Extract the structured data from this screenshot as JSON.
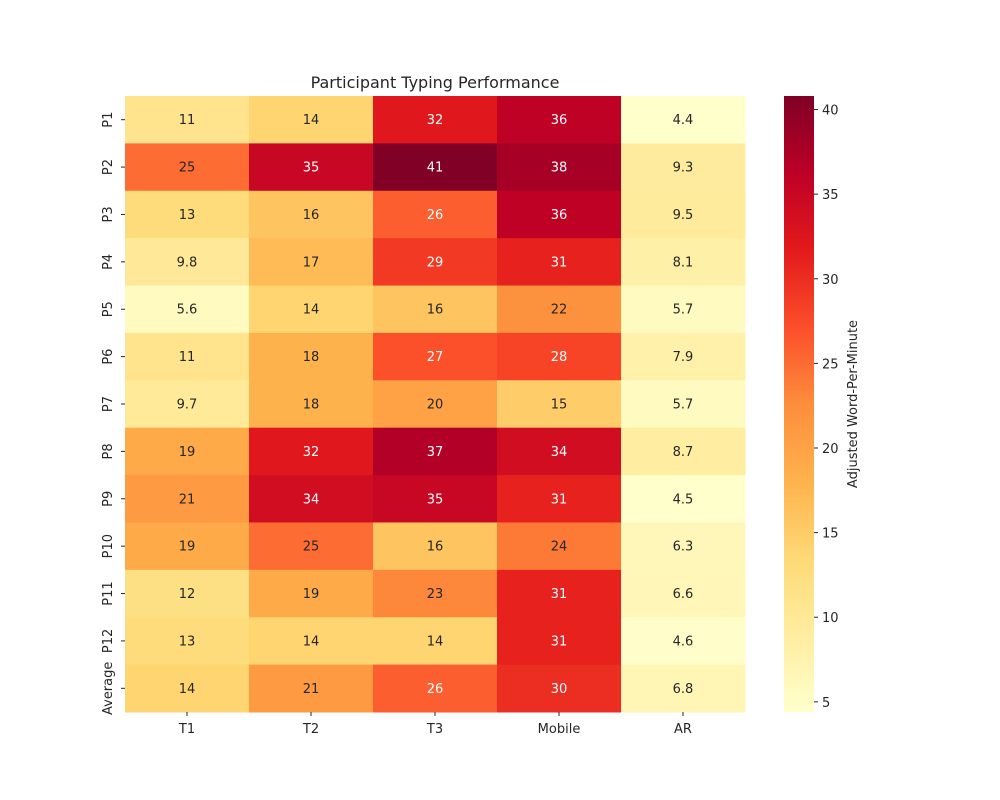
{
  "chart_data": {
    "type": "heatmap",
    "title": "Participant Typing Performance",
    "xlabel": "",
    "ylabel": "",
    "x_categories": [
      "T1",
      "T2",
      "T3",
      "Mobile",
      "AR"
    ],
    "y_categories": [
      "P1",
      "P2",
      "P3",
      "P4",
      "P5",
      "P6",
      "P7",
      "P8",
      "P9",
      "P10",
      "P11",
      "P12",
      "Average"
    ],
    "values": [
      [
        11,
        14,
        32,
        36,
        4.4
      ],
      [
        25,
        35,
        41,
        38,
        9.3
      ],
      [
        13,
        16,
        26,
        36,
        9.5
      ],
      [
        9.8,
        17,
        29,
        31,
        8.1
      ],
      [
        5.6,
        14,
        16,
        22,
        5.7
      ],
      [
        11,
        18,
        27,
        28,
        7.9
      ],
      [
        9.7,
        18,
        20,
        15,
        5.7
      ],
      [
        19,
        32,
        37,
        34,
        8.7
      ],
      [
        21,
        34,
        35,
        31,
        4.5
      ],
      [
        19,
        25,
        16,
        24,
        6.3
      ],
      [
        12,
        19,
        23,
        31,
        6.6
      ],
      [
        13,
        14,
        14,
        31,
        4.6
      ],
      [
        14,
        21,
        26,
        30,
        6.8
      ]
    ],
    "colorbar": {
      "label": "Adjusted Word-Per-Minute",
      "ticks": [
        5,
        10,
        15,
        20,
        25,
        30,
        35,
        40
      ],
      "range": [
        4.4,
        40.8
      ]
    },
    "colormap": "YlOrRd",
    "colormap_stops": [
      "#ffffcc",
      "#ffeda0",
      "#fed976",
      "#feb24c",
      "#fd8d3c",
      "#fc4e2a",
      "#e31a1c",
      "#bd0026",
      "#800026"
    ],
    "grid": false
  }
}
